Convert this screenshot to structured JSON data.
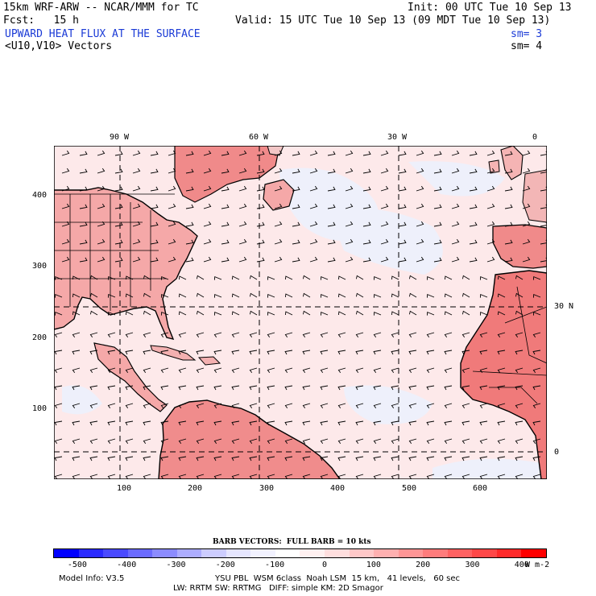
{
  "header": {
    "model": "15km WRF-ARW -- NCAR/MMM for TC",
    "init": "Init: 00 UTC Tue 10 Sep 13",
    "fcst": "Fcst:   15 h",
    "valid": "Valid: 15 UTC Tue 10 Sep 13 (09 MDT Tue 10 Sep 13)",
    "field": "UPWARD HEAT FLUX AT THE SURFACE",
    "field_sm": "sm= 3",
    "vectors": "<U10,V10> Vectors",
    "vectors_sm": "sm= 4"
  },
  "axes": {
    "top": [
      "90 W",
      "60 W",
      "30 W",
      "0"
    ],
    "left": [
      "400",
      "300",
      "200",
      "100"
    ],
    "bottom": [
      "100",
      "200",
      "300",
      "400",
      "500",
      "600"
    ],
    "right": [
      "30 N",
      "0"
    ]
  },
  "colorbar": {
    "title": "BARB VECTORS:  FULL BARB = 10 kts",
    "labels": [
      "-500",
      "-400",
      "-300",
      "-200",
      "-100",
      "0",
      "100",
      "200",
      "300",
      "400"
    ],
    "unit": "W m-2",
    "colors": [
      "#0000ff",
      "#2a2aff",
      "#4a4aff",
      "#6b6bff",
      "#8c8cff",
      "#adadff",
      "#cdcdff",
      "#e6e6ff",
      "#f2f2ff",
      "#ffffff",
      "#fff0f0",
      "#ffdede",
      "#ffc8c8",
      "#ffb0b0",
      "#ff9696",
      "#ff7c7c",
      "#ff6262",
      "#ff4848",
      "#ff2a2a",
      "#ff0000"
    ]
  },
  "footer": {
    "model_info": "Model Info: V3.5",
    "physics1": "YSU PBL  WSM 6class  Noah LSM  15 km,   41 levels,   60 sec",
    "physics2": "LW: RRTM SW: RRTMG   DIFF: simple KM: 2D Smagor"
  },
  "map_colors": {
    "ocean": "#fde9ea",
    "ocean_cool": "#eef0fb",
    "land": "#f5a0a0",
    "land_hot": "#f07a7a"
  }
}
